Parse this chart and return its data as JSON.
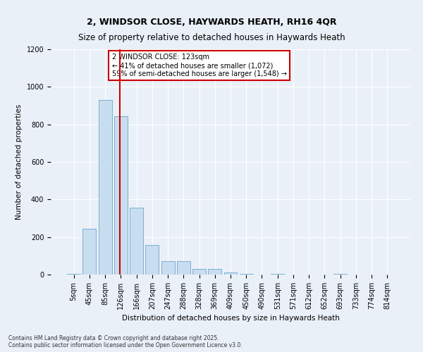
{
  "title": "2, WINDSOR CLOSE, HAYWARDS HEATH, RH16 4QR",
  "subtitle": "Size of property relative to detached houses in Haywards Heath",
  "xlabel": "Distribution of detached houses by size in Haywards Heath",
  "ylabel": "Number of detached properties",
  "bar_color": "#c9ddf0",
  "bar_edge_color": "#7aafd4",
  "categories": [
    "5sqm",
    "45sqm",
    "85sqm",
    "126sqm",
    "166sqm",
    "207sqm",
    "247sqm",
    "288sqm",
    "328sqm",
    "369sqm",
    "409sqm",
    "450sqm",
    "490sqm",
    "531sqm",
    "571sqm",
    "612sqm",
    "652sqm",
    "693sqm",
    "733sqm",
    "774sqm",
    "814sqm"
  ],
  "values": [
    5,
    245,
    930,
    845,
    358,
    158,
    72,
    72,
    30,
    30,
    12,
    3,
    0,
    3,
    0,
    0,
    0,
    3,
    0,
    0,
    0
  ],
  "ylim": [
    0,
    1200
  ],
  "yticks": [
    0,
    200,
    400,
    600,
    800,
    1000,
    1200
  ],
  "vline_index": 3,
  "vline_color": "#cc0000",
  "annotation_text": "2 WINDSOR CLOSE: 123sqm\n← 41% of detached houses are smaller (1,072)\n59% of semi-detached houses are larger (1,548) →",
  "annotation_box_color": "#ffffff",
  "annotation_box_edge": "#cc0000",
  "bg_color": "#eaf0f8",
  "footer": "Contains HM Land Registry data © Crown copyright and database right 2025.\nContains public sector information licensed under the Open Government Licence v3.0.",
  "title_fontsize": 9,
  "subtitle_fontsize": 8.5,
  "axis_label_fontsize": 7.5,
  "tick_fontsize": 7,
  "annotation_fontsize": 7,
  "footer_fontsize": 5.5
}
